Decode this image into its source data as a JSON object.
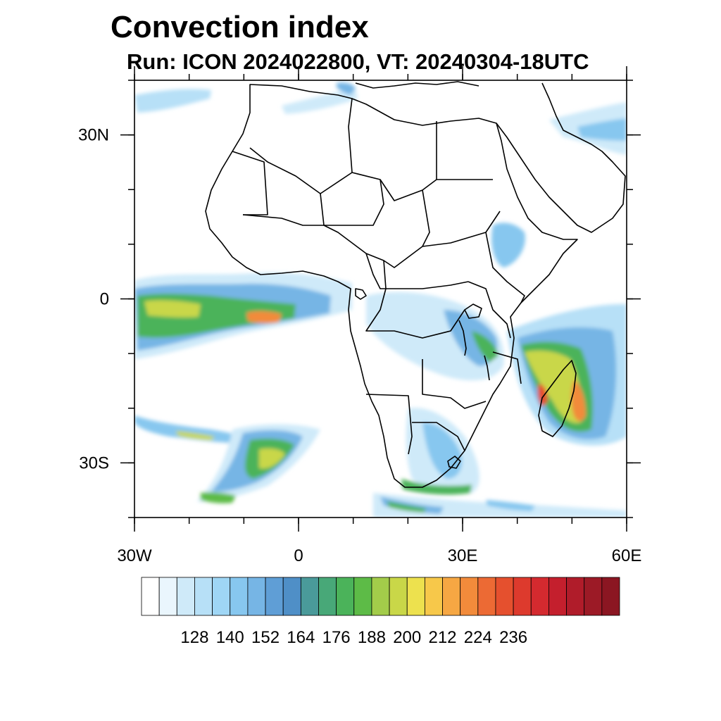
{
  "title": "Convection index",
  "subtitle": "Run: ICON 2024022800,  VT: 20240304-18UTC",
  "map": {
    "lon_range": [
      -30,
      60
    ],
    "lat_range": [
      -40,
      40
    ],
    "x_ticks": [
      {
        "value": -30,
        "label": "30W"
      },
      {
        "value": 0,
        "label": "0"
      },
      {
        "value": 30,
        "label": "30E"
      },
      {
        "value": 60,
        "label": "60E"
      }
    ],
    "y_ticks": [
      {
        "value": 30,
        "label": "30N"
      },
      {
        "value": 0,
        "label": "0"
      },
      {
        "value": -30,
        "label": "30S"
      }
    ],
    "minor_step_deg": 10
  },
  "colorbar": {
    "labels": [
      "128",
      "140",
      "152",
      "164",
      "176",
      "188",
      "200",
      "212",
      "224",
      "236"
    ],
    "colors": [
      "#ffffff",
      "#eaf6fd",
      "#cfeaf9",
      "#b7e0f7",
      "#9fd6f5",
      "#87c7ef",
      "#76b5e5",
      "#5f9ed6",
      "#4f8fc7",
      "#4a9a9a",
      "#48a878",
      "#4bb35a",
      "#5dbb47",
      "#a3cc4a",
      "#c9d748",
      "#ede14e",
      "#f7c84a",
      "#f6a743",
      "#f28b3b",
      "#ec6a34",
      "#e5502e",
      "#dd3a2d",
      "#d42a2f",
      "#c41f2d",
      "#b01c2a",
      "#9c1a26",
      "#8b1622"
    ]
  }
}
